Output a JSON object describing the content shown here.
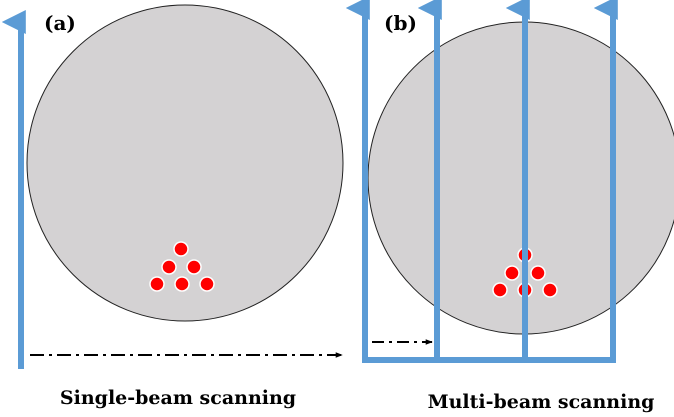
{
  "panels": [
    {
      "label": "(a)",
      "caption": "Single-beam scanning",
      "beam_count": 1,
      "target_dot_count": 6
    },
    {
      "label": "(b)",
      "caption": "Multi-beam scanning",
      "beam_count": 4,
      "target_dot_count": 6
    }
  ],
  "colors": {
    "circle_fill": "#d4d2d3",
    "circle_stroke": "#222222",
    "beam": "#5b9bd5",
    "dot": "#ff0000",
    "dot_stroke": "#ffffff",
    "dashed_arrow": "#000000"
  }
}
